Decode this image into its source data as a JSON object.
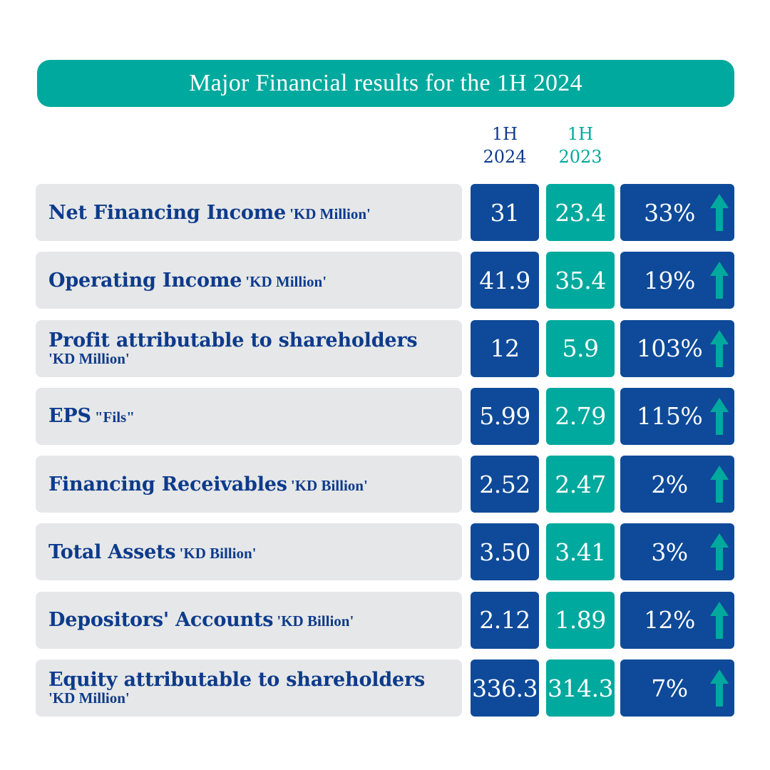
{
  "title": "Major Financial results for the 1H 2024",
  "colors": {
    "teal": "#00a99d",
    "navy": "#0e4a99",
    "label_bg": "#e6e7e8",
    "label_text": "#0d3b8c",
    "arrow": "#00a99d"
  },
  "columns": {
    "current": {
      "line1": "1H",
      "line2": "2024"
    },
    "previous": {
      "line1": "1H",
      "line2": "2023"
    }
  },
  "rows": [
    {
      "label": "Net Financing Income",
      "unit": "'KD Million'",
      "unit_newline": false,
      "v2024": "31",
      "v2023": "23.4",
      "change": "33%",
      "trend": "up-arrow-icon"
    },
    {
      "label": "Operating Income",
      "unit": "'KD Million'",
      "unit_newline": false,
      "v2024": "41.9",
      "v2023": "35.4",
      "change": "19%",
      "trend": "up-arrow-icon"
    },
    {
      "label": "Profit attributable to shareholders",
      "unit": "'KD Million'",
      "unit_newline": true,
      "v2024": "12",
      "v2023": "5.9",
      "change": "103%",
      "trend": "up-arrow-icon"
    },
    {
      "label": "EPS",
      "unit": "\"Fils\"",
      "unit_newline": false,
      "v2024": "5.99",
      "v2023": "2.79",
      "change": "115%",
      "trend": "up-arrow-icon"
    },
    {
      "label": "Financing Receivables",
      "unit": "'KD Billion'",
      "unit_newline": false,
      "v2024": "2.52",
      "v2023": "2.47",
      "change": "2%",
      "trend": "up-arrow-icon"
    },
    {
      "label": "Total Assets",
      "unit": "'KD Billion'",
      "unit_newline": false,
      "v2024": "3.50",
      "v2023": "3.41",
      "change": "3%",
      "trend": "up-arrow-icon"
    },
    {
      "label": "Depositors' Accounts",
      "unit": "'KD Billion'",
      "unit_newline": false,
      "v2024": "2.12",
      "v2023": "1.89",
      "change": "12%",
      "trend": "up-arrow-icon"
    },
    {
      "label": "Equity attributable to shareholders",
      "unit": "'KD Million'",
      "unit_newline": true,
      "v2024": "336.3",
      "v2023": "314.3",
      "change": "7%",
      "trend": "up-arrow-icon"
    }
  ],
  "chart_data": {
    "type": "table",
    "title": "Major Financial results for the 1H 2024",
    "columns": [
      "1H 2024",
      "1H 2023",
      ""
    ],
    "rows": [
      {
        "metric": "Net Financing Income",
        "unit": "'KD Million'",
        "1H 2024": 31,
        "1H 2023": 23.4,
        "change_pct": 33
      },
      {
        "metric": "Operating Income",
        "unit": "'KD Million'",
        "1H 2024": 41.9,
        "1H 2023": 35.4,
        "change_pct": 19
      },
      {
        "metric": "Profit attributable to shareholders",
        "unit": "'KD Million'",
        "1H 2024": 12,
        "1H 2023": 5.9,
        "change_pct": 103
      },
      {
        "metric": "EPS",
        "unit": "\"Fils\"",
        "1H 2024": 5.99,
        "1H 2023": 2.79,
        "change_pct": 115
      },
      {
        "metric": "Financing Receivables",
        "unit": "'KD Billion'",
        "1H 2024": 2.52,
        "1H 2023": 2.47,
        "change_pct": 2
      },
      {
        "metric": "Total Assets",
        "unit": "'KD Billion'",
        "1H 2024": 3.5,
        "1H 2023": 3.41,
        "change_pct": 3
      },
      {
        "metric": "Depositors' Accounts",
        "unit": "'KD Billion'",
        "1H 2024": 2.12,
        "1H 2023": 1.89,
        "change_pct": 12
      },
      {
        "metric": "Equity attributable to shareholders",
        "unit": "'KD Million'",
        "1H 2024": 336.3,
        "1H 2023": 314.3,
        "change_pct": 7
      }
    ]
  }
}
